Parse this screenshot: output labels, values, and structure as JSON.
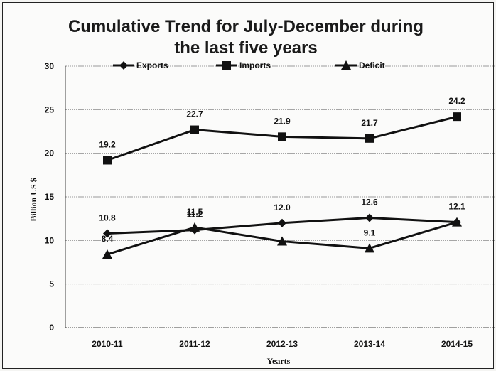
{
  "chart_data": {
    "type": "line",
    "title_line1": "Cumulative Trend for July-December during",
    "title_line2": "the last five years",
    "xlabel": "Yearts",
    "ylabel": "Billion US $",
    "categories": [
      "2010-11",
      "2011-12",
      "2012-13",
      "2013-14",
      "2014-15"
    ],
    "ylim": [
      0,
      30
    ],
    "yticks": [
      0,
      5,
      10,
      15,
      20,
      25,
      30
    ],
    "grid": true,
    "legend_position": "top",
    "series": [
      {
        "name": "Exports",
        "marker": "diamond",
        "values": [
          10.8,
          11.2,
          12.0,
          12.6,
          12.1
        ],
        "labels": [
          "10.8",
          "11.2",
          "12.0",
          "12.6",
          "12.1"
        ]
      },
      {
        "name": "Imports",
        "marker": "square",
        "values": [
          19.2,
          22.7,
          21.9,
          21.7,
          24.2
        ],
        "labels": [
          "19.2",
          "22.7",
          "21.9",
          "21.7",
          "24.2"
        ]
      },
      {
        "name": "Deficit",
        "marker": "triangle",
        "values": [
          8.4,
          11.5,
          9.9,
          9.1,
          12.1
        ],
        "labels": [
          "8.4",
          "11.5",
          "",
          "9.1",
          ""
        ]
      }
    ]
  }
}
